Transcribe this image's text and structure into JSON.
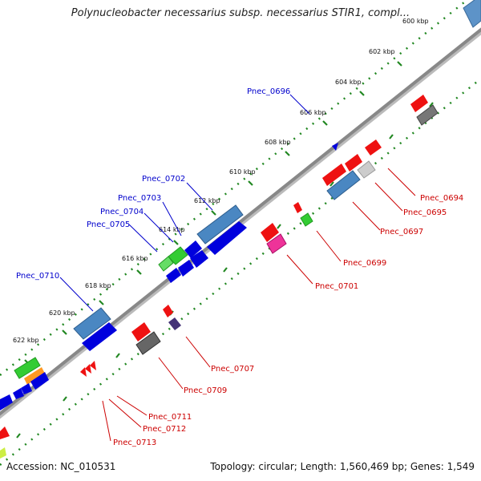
{
  "title": "Polynucleobacter necessarius subsp. necessarius STIR1, compl...",
  "footer": {
    "accession": "Accession: NC_010531",
    "stats": "Topology: circular; Length: 1,560,469 bp; Genes: 1,549"
  },
  "colors": {
    "plus_label": "#0000cc",
    "minus_label": "#cc0000",
    "backbone": "#888888",
    "tick": "#228822"
  },
  "scale_ticks": [
    "600 kbp",
    "602 kbp",
    "604 kbp",
    "606 kbp",
    "608 kbp",
    "610 kbp",
    "612 kbp",
    "614 kbp",
    "616 kbp",
    "618 kbp",
    "620 kbp",
    "622 kbp"
  ],
  "plus_strand_labels": [
    "Pnec_0696",
    "Pnec_0702",
    "Pnec_0703",
    "Pnec_0704",
    "Pnec_0705",
    "Pnec_0710"
  ],
  "minus_strand_labels": [
    "Pnec_0694",
    "Pnec_0695",
    "Pnec_0697",
    "Pnec_0699",
    "Pnec_0701",
    "Pnec_0707",
    "Pnec_0709",
    "Pnec_0711",
    "Pnec_0712",
    "Pnec_0713"
  ]
}
